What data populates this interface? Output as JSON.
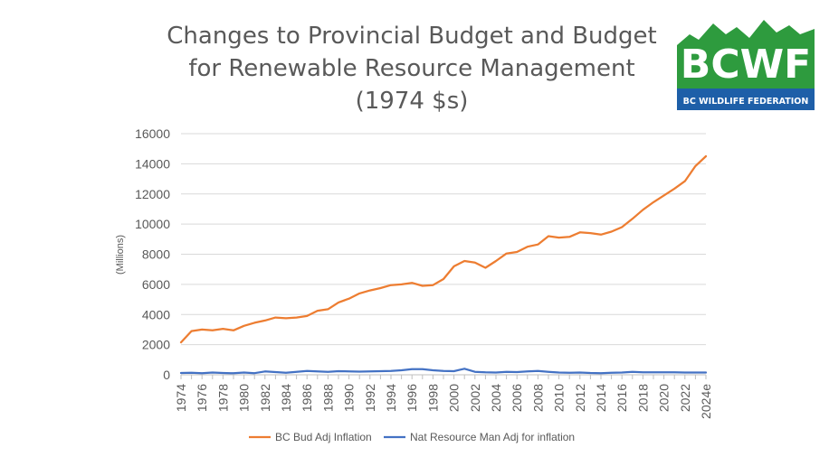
{
  "logo": {
    "text": "BCWF",
    "subtitle": "BC WILDLIFE FEDERATION",
    "colors": {
      "green": "#2e9b3e",
      "blue": "#1e5fa8",
      "white": "#ffffff"
    }
  },
  "chart_data": {
    "type": "line",
    "title_lines": [
      "Changes to Provincial Budget and Budget",
      "for Renewable Resource Management",
      "(1974 $s)"
    ],
    "ylabel": "(Millions)",
    "xlabel": "",
    "ylim": [
      0,
      16000
    ],
    "yticks": [
      0,
      2000,
      4000,
      6000,
      8000,
      10000,
      12000,
      14000,
      16000
    ],
    "grid": true,
    "legend_position": "bottom",
    "x": [
      "1974",
      "1975",
      "1976",
      "1977",
      "1978",
      "1979",
      "1980",
      "1981",
      "1982",
      "1983",
      "1984",
      "1985",
      "1986",
      "1987",
      "1988",
      "1989",
      "1990",
      "1991",
      "1992",
      "1993",
      "1994",
      "1995",
      "1996",
      "1997",
      "1998",
      "1999",
      "2000",
      "2001",
      "2002",
      "2003",
      "2004",
      "2005",
      "2006",
      "2007",
      "2008",
      "2009",
      "2010",
      "2011",
      "2012",
      "2013",
      "2014",
      "2015",
      "2016",
      "2017",
      "2018",
      "2019",
      "2020",
      "2021",
      "2022",
      "2023",
      "2024e"
    ],
    "xtick_labels": [
      "1974",
      "1976",
      "1978",
      "1980",
      "1982",
      "1984",
      "1986",
      "1988",
      "1990",
      "1992",
      "1994",
      "1996",
      "1998",
      "2000",
      "2002",
      "2004",
      "2006",
      "2008",
      "2010",
      "2012",
      "2014",
      "2016",
      "2018",
      "2020",
      "2022",
      "2024e"
    ],
    "series": [
      {
        "name": "BC Bud Adj Inflation",
        "color": "#ed7d31",
        "values": [
          2150,
          2900,
          3000,
          2950,
          3050,
          2950,
          3250,
          3450,
          3600,
          3800,
          3750,
          3800,
          3900,
          4250,
          4350,
          4800,
          5050,
          5400,
          5600,
          5750,
          5950,
          6000,
          6100,
          5900,
          5950,
          6350,
          7200,
          7550,
          7450,
          7100,
          7550,
          8050,
          8150,
          8500,
          8650,
          9200,
          9100,
          9150,
          9450,
          9400,
          9300,
          9500,
          9800,
          10350,
          10950,
          11450,
          11900,
          12350,
          12850,
          13850,
          14500
        ]
      },
      {
        "name": "Nat Resource Man Adj for inflation",
        "color": "#4472c4",
        "values": [
          120,
          140,
          110,
          150,
          120,
          100,
          150,
          110,
          220,
          180,
          140,
          200,
          260,
          220,
          200,
          240,
          230,
          210,
          220,
          240,
          250,
          300,
          380,
          380,
          300,
          250,
          240,
          400,
          200,
          160,
          150,
          200,
          180,
          220,
          260,
          200,
          150,
          140,
          150,
          120,
          110,
          130,
          150,
          190,
          170,
          160,
          170,
          160,
          150,
          150,
          150
        ]
      }
    ]
  }
}
